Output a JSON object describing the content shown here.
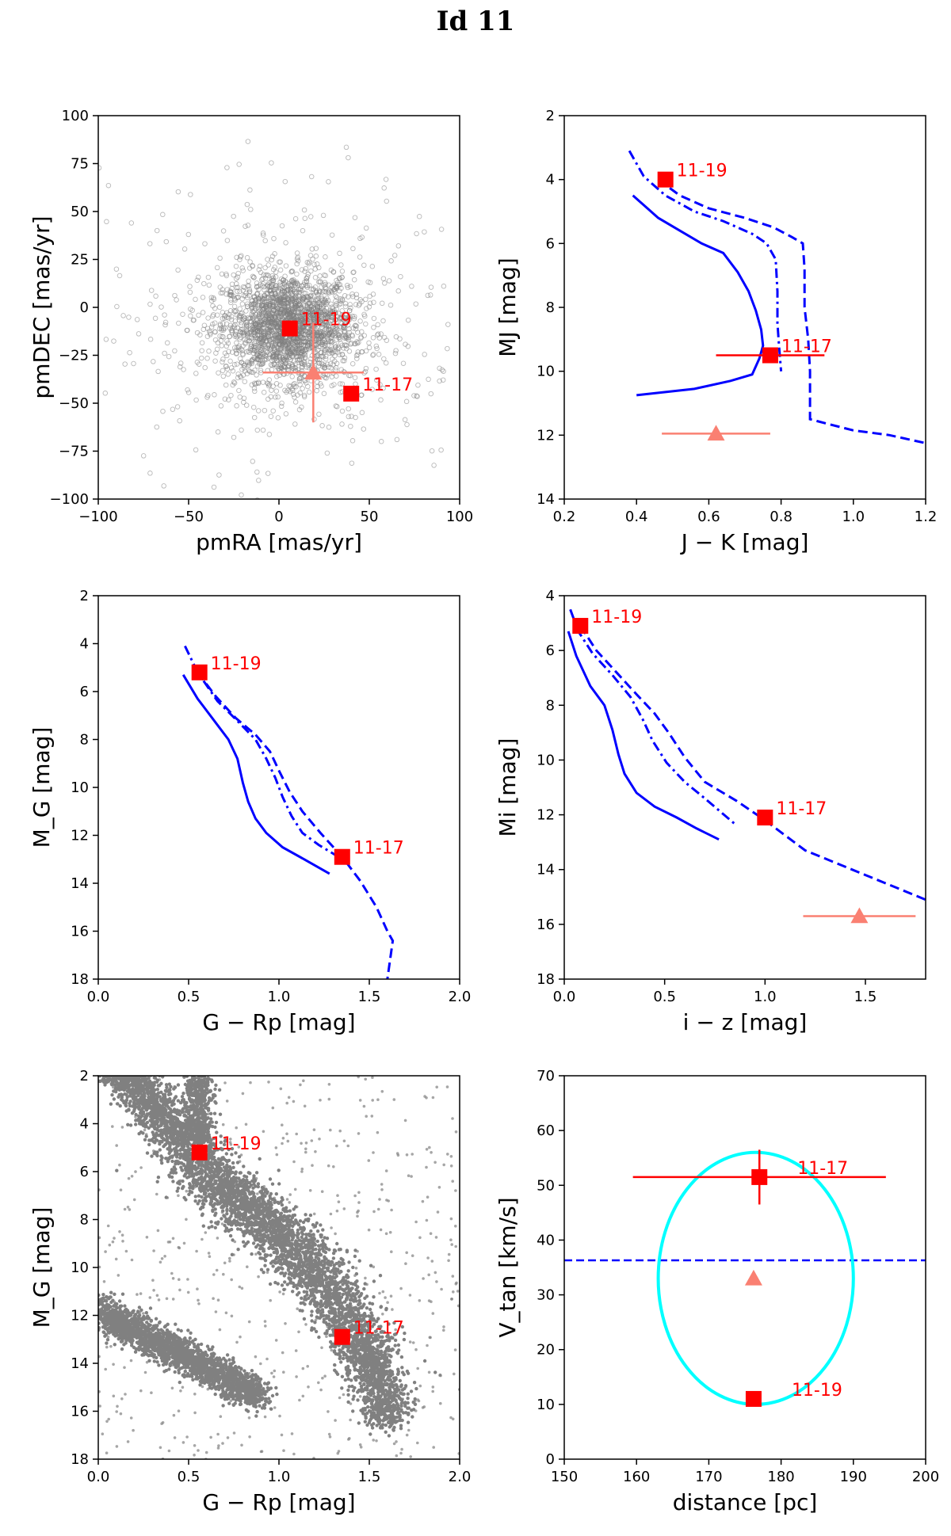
{
  "figure_title": "Id 11",
  "colors": {
    "red": "#ff0000",
    "salmon": "#fa8072",
    "blue": "#0000ff",
    "cyan": "#00ffff",
    "gray": "#808080"
  },
  "chart_data": [
    {
      "id": "pm",
      "type": "scatter",
      "xlabel": "pmRA [mas/yr]",
      "ylabel": "pmDEC [mas/yr]",
      "xlim": [
        -100,
        100
      ],
      "ylim": [
        -100,
        100
      ],
      "yinvert": false,
      "xticks": [
        -100,
        -50,
        0,
        50,
        100
      ],
      "yticks": [
        -100,
        -75,
        -50,
        -25,
        0,
        25,
        50,
        75,
        100
      ],
      "tick_labels_x": [
        "−100",
        "−50",
        "0",
        "50",
        "100"
      ],
      "tick_labels_y": [
        "−100",
        "−75",
        "−50",
        "−25",
        "0",
        "25",
        "50",
        "75",
        "100"
      ],
      "background_cloud": {
        "kind": "open-circles",
        "center": [
          5,
          -10
        ],
        "spread": [
          18,
          14
        ],
        "count": 2600
      },
      "points": [
        {
          "label": "11-19",
          "x": 6,
          "y": -11
        },
        {
          "label": "11-17",
          "x": 40,
          "y": -45
        }
      ],
      "target": {
        "x": 19,
        "y": -34,
        "xerr": 28,
        "yerr": 26
      }
    },
    {
      "id": "jk",
      "type": "line",
      "xlabel": "J − K [mag]",
      "ylabel": "MJ [mag]",
      "xlim": [
        0.2,
        1.2
      ],
      "ylim": [
        2,
        14
      ],
      "yinvert": true,
      "xticks": [
        0.2,
        0.4,
        0.6,
        0.8,
        1.0,
        1.2
      ],
      "yticks": [
        2,
        4,
        6,
        8,
        10,
        12,
        14
      ],
      "tick_labels_x": [
        "0.2",
        "0.4",
        "0.6",
        "0.8",
        "1.0",
        "1.2"
      ],
      "tick_labels_y": [
        "2",
        "4",
        "6",
        "8",
        "10",
        "12",
        "14"
      ],
      "series": [
        {
          "name": "solid",
          "style": "solid",
          "x": [
            0.39,
            0.42,
            0.46,
            0.52,
            0.58,
            0.64,
            0.68,
            0.71,
            0.73,
            0.745,
            0.75,
            0.74,
            0.72,
            0.66,
            0.56,
            0.4
          ],
          "y": [
            4.5,
            4.8,
            5.2,
            5.6,
            6.0,
            6.3,
            6.9,
            7.5,
            8.1,
            8.7,
            9.2,
            9.6,
            10.1,
            10.3,
            10.55,
            10.75
          ]
        },
        {
          "name": "dashdot",
          "style": "dashdot",
          "x": [
            0.38,
            0.42,
            0.48,
            0.56,
            0.64,
            0.72,
            0.76,
            0.785,
            0.79,
            0.79,
            0.795,
            0.8
          ],
          "y": [
            3.1,
            3.9,
            4.5,
            5.0,
            5.3,
            5.7,
            6.0,
            6.5,
            7.5,
            8.5,
            9.3,
            10.0
          ]
        },
        {
          "name": "dashed",
          "style": "dashed",
          "x": [
            0.46,
            0.52,
            0.6,
            0.7,
            0.78,
            0.83,
            0.86,
            0.865,
            0.865,
            0.875,
            0.88,
            0.88,
            0.88,
            0.93,
            1.0,
            1.1,
            1.2
          ],
          "y": [
            4.0,
            4.5,
            4.9,
            5.2,
            5.5,
            5.8,
            6.0,
            6.8,
            8.0,
            9.0,
            10.0,
            11.0,
            11.5,
            11.65,
            11.85,
            12.0,
            12.25
          ]
        }
      ],
      "points": [
        {
          "label": "11-19",
          "x": 0.48,
          "y": 4.0
        },
        {
          "label": "11-17",
          "x": 0.77,
          "y": 9.5,
          "xerr": 0.15
        }
      ],
      "target": {
        "x": 0.62,
        "y": 11.95,
        "xerr": 0.15
      }
    },
    {
      "id": "grp",
      "type": "line",
      "xlabel": "G − Rp [mag]",
      "ylabel": "M_G [mag]",
      "xlim": [
        0.0,
        2.0
      ],
      "ylim": [
        2,
        18
      ],
      "yinvert": true,
      "xticks": [
        0.0,
        0.5,
        1.0,
        1.5,
        2.0
      ],
      "yticks": [
        2,
        4,
        6,
        8,
        10,
        12,
        14,
        16,
        18
      ],
      "tick_labels_x": [
        "0.0",
        "0.5",
        "1.0",
        "1.5",
        "2.0"
      ],
      "tick_labels_y": [
        "2",
        "4",
        "6",
        "8",
        "10",
        "12",
        "14",
        "16",
        "18"
      ],
      "series": [
        {
          "name": "solid",
          "style": "solid",
          "x": [
            0.47,
            0.55,
            0.65,
            0.72,
            0.77,
            0.8,
            0.83,
            0.87,
            0.93,
            1.02,
            1.14,
            1.28
          ],
          "y": [
            5.3,
            6.3,
            7.3,
            8.0,
            8.8,
            9.8,
            10.6,
            11.3,
            11.9,
            12.5,
            13.0,
            13.6
          ]
        },
        {
          "name": "dashdot",
          "style": "dashdot",
          "x": [
            0.48,
            0.55,
            0.66,
            0.78,
            0.87,
            0.93,
            0.98,
            1.02,
            1.07,
            1.13,
            1.22,
            1.33
          ],
          "y": [
            4.1,
            5.2,
            6.4,
            7.3,
            8.0,
            8.8,
            9.6,
            10.4,
            11.2,
            11.9,
            12.4,
            12.9
          ]
        },
        {
          "name": "dashed",
          "style": "dashed",
          "x": [
            0.55,
            0.65,
            0.76,
            0.87,
            0.95,
            1.0,
            1.06,
            1.13,
            1.23,
            1.35,
            1.45,
            1.54,
            1.6,
            1.63,
            1.6
          ],
          "y": [
            5.2,
            6.2,
            7.1,
            7.8,
            8.5,
            9.3,
            10.2,
            11.0,
            11.9,
            12.9,
            13.9,
            15.0,
            16.0,
            16.4,
            18.0
          ]
        }
      ],
      "points": [
        {
          "label": "11-19",
          "x": 0.56,
          "y": 5.2
        },
        {
          "label": "11-17",
          "x": 1.35,
          "y": 12.9
        }
      ]
    },
    {
      "id": "iz",
      "type": "line",
      "xlabel": "i − z [mag]",
      "ylabel": "Mi [mag]",
      "xlim": [
        0.0,
        1.8
      ],
      "ylim": [
        4,
        18
      ],
      "yinvert": true,
      "xticks": [
        0.0,
        0.5,
        1.0,
        1.5
      ],
      "yticks": [
        4,
        6,
        8,
        10,
        12,
        14,
        16,
        18
      ],
      "tick_labels_x": [
        "0.0",
        "0.5",
        "1.0",
        "1.5"
      ],
      "tick_labels_y": [
        "4",
        "6",
        "8",
        "10",
        "12",
        "14",
        "16",
        "18"
      ],
      "series": [
        {
          "name": "solid",
          "style": "solid",
          "x": [
            0.02,
            0.06,
            0.13,
            0.2,
            0.24,
            0.27,
            0.3,
            0.36,
            0.45,
            0.56,
            0.66,
            0.77
          ],
          "y": [
            5.3,
            6.2,
            7.3,
            8.0,
            8.9,
            9.8,
            10.5,
            11.2,
            11.7,
            12.1,
            12.5,
            12.9
          ]
        },
        {
          "name": "dashdot",
          "style": "dashdot",
          "x": [
            0.03,
            0.07,
            0.14,
            0.24,
            0.33,
            0.39,
            0.44,
            0.51,
            0.6,
            0.7,
            0.78,
            0.86
          ],
          "y": [
            4.5,
            5.3,
            6.1,
            6.9,
            7.7,
            8.5,
            9.3,
            10.1,
            10.8,
            11.4,
            11.9,
            12.4
          ]
        },
        {
          "name": "dashed",
          "style": "dashed",
          "x": [
            0.08,
            0.16,
            0.26,
            0.36,
            0.45,
            0.52,
            0.6,
            0.7,
            0.86,
            1.0,
            1.2,
            1.5,
            1.8
          ],
          "y": [
            5.1,
            6.0,
            6.8,
            7.6,
            8.3,
            9.0,
            9.9,
            10.8,
            11.5,
            12.2,
            13.3,
            14.2,
            15.1
          ]
        }
      ],
      "points": [
        {
          "label": "11-19",
          "x": 0.08,
          "y": 5.1
        },
        {
          "label": "11-17",
          "x": 1.0,
          "y": 12.1
        }
      ],
      "target": {
        "x": 1.47,
        "y": 15.7,
        "xerr": 0.28
      }
    },
    {
      "id": "cmd",
      "type": "scatter",
      "xlabel": "G − Rp [mag]",
      "ylabel": "M_G [mag]",
      "xlim": [
        0.0,
        2.0
      ],
      "ylim": [
        2,
        18
      ],
      "yinvert": true,
      "xticks": [
        0.0,
        0.5,
        1.0,
        1.5,
        2.0
      ],
      "yticks": [
        2,
        4,
        6,
        8,
        10,
        12,
        14,
        16,
        18
      ],
      "tick_labels_x": [
        "0.0",
        "0.5",
        "1.0",
        "1.5",
        "2.0"
      ],
      "tick_labels_y": [
        "2",
        "4",
        "6",
        "8",
        "10",
        "12",
        "14",
        "16",
        "18"
      ],
      "background_cloud": {
        "kind": "filled-dots",
        "sequences": [
          "main-sequence",
          "white-dwarf"
        ]
      },
      "points": [
        {
          "label": "11-19",
          "x": 0.56,
          "y": 5.2
        },
        {
          "label": "11-17",
          "x": 1.35,
          "y": 12.9
        }
      ]
    },
    {
      "id": "vt",
      "type": "scatter",
      "xlabel": "distance [pc]",
      "ylabel": "V_tan [km/s]",
      "xlim": [
        150,
        200
      ],
      "ylim": [
        0,
        70
      ],
      "yinvert": false,
      "xticks": [
        150,
        160,
        170,
        180,
        190,
        200
      ],
      "yticks": [
        0,
        10,
        20,
        30,
        40,
        50,
        60,
        70
      ],
      "tick_labels_x": [
        "150",
        "160",
        "170",
        "180",
        "190",
        "200"
      ],
      "tick_labels_y": [
        "0",
        "10",
        "20",
        "30",
        "40",
        "50",
        "60",
        "70"
      ],
      "hline": {
        "y": 36.3,
        "style": "dashed"
      },
      "ellipse": {
        "cx": 176.5,
        "cy": 33,
        "rx": 13.5,
        "ry": 23
      },
      "points": [
        {
          "label": "11-17",
          "x": 177,
          "y": 51.5,
          "xerr_low": 17.5,
          "xerr_high": 17.5,
          "yerr": 5
        },
        {
          "label": "11-19",
          "x": 176.2,
          "y": 11
        }
      ],
      "target": {
        "x": 176.2,
        "y": 33
      }
    }
  ]
}
